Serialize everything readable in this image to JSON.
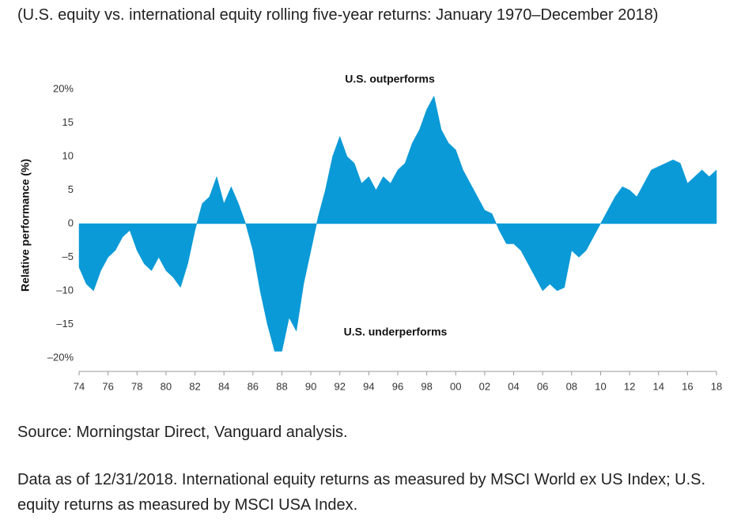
{
  "chart_data": {
    "type": "area",
    "title": "(U.S. equity vs. international equity rolling five-year returns: January 1970–December 2018)",
    "y_label": "Relative performance (%)",
    "annotations": [
      "U.S. outperforms",
      "U.S. underperforms"
    ],
    "source": "Source: Morningstar Direct, Vanguard analysis.",
    "note": "Data as of 12/31/2018. International equity returns as measured by MSCI World ex US Index; U.S. equity returns as measured by MSCI USA Index.",
    "color": "#0a9ad7",
    "x": [
      1974,
      1974.5,
      1975,
      1975.5,
      1976,
      1976.5,
      1977,
      1977.5,
      1978,
      1978.5,
      1979,
      1979.5,
      1980,
      1980.5,
      1981,
      1981.5,
      1982,
      1982.5,
      1983,
      1983.5,
      1984,
      1984.5,
      1985,
      1985.5,
      1986,
      1986.5,
      1987,
      1987.5,
      1988,
      1988.5,
      1989,
      1989.5,
      1990,
      1990.5,
      1991,
      1991.5,
      1992,
      1992.5,
      1993,
      1993.5,
      1994,
      1994.5,
      1995,
      1995.5,
      1996,
      1996.5,
      1997,
      1997.5,
      1998,
      1998.5,
      1999,
      1999.5,
      2000,
      2000.5,
      2001,
      2001.5,
      2002,
      2002.5,
      2003,
      2003.5,
      2004,
      2004.5,
      2005,
      2005.5,
      2006,
      2006.5,
      2007,
      2007.5,
      2008,
      2008.5,
      2009,
      2009.5,
      2010,
      2010.5,
      2011,
      2011.5,
      2012,
      2012.5,
      2013,
      2013.5,
      2014,
      2014.5,
      2015,
      2015.5,
      2016,
      2016.5,
      2017,
      2017.5,
      2018
    ],
    "values": [
      -6.5,
      -9,
      -10,
      -7,
      -5,
      -4,
      -2,
      -1,
      -4,
      -6,
      -7,
      -5,
      -7,
      -8,
      -9.5,
      -6,
      -1,
      3,
      4,
      7,
      3,
      5.5,
      3,
      0,
      -4,
      -10,
      -15,
      -19,
      -19,
      -14,
      -16,
      -9,
      -4,
      1,
      5,
      10,
      13,
      10,
      9,
      6,
      7,
      5,
      7,
      6,
      8,
      9,
      12,
      14,
      17,
      19,
      14,
      12,
      11,
      8,
      6,
      4,
      2,
      1.5,
      -1,
      -3,
      -3,
      -4,
      -6,
      -8,
      -10,
      -9,
      -10,
      -9.5,
      -4,
      -5,
      -4,
      -2,
      0,
      2,
      4,
      5.5,
      5,
      4,
      6,
      8,
      8.5,
      9,
      9.5,
      9,
      6,
      7,
      8,
      7,
      8
    ],
    "xlim": [
      1974,
      2018
    ],
    "xticks": [
      {
        "value": 1974,
        "label": "74"
      },
      {
        "value": 1976,
        "label": "76"
      },
      {
        "value": 1978,
        "label": "78"
      },
      {
        "value": 1980,
        "label": "80"
      },
      {
        "value": 1982,
        "label": "82"
      },
      {
        "value": 1984,
        "label": "84"
      },
      {
        "value": 1986,
        "label": "86"
      },
      {
        "value": 1988,
        "label": "88"
      },
      {
        "value": 1990,
        "label": "90"
      },
      {
        "value": 1992,
        "label": "92"
      },
      {
        "value": 1994,
        "label": "94"
      },
      {
        "value": 1996,
        "label": "96"
      },
      {
        "value": 1998,
        "label": "98"
      },
      {
        "value": 2000,
        "label": "00"
      },
      {
        "value": 2002,
        "label": "02"
      },
      {
        "value": 2004,
        "label": "04"
      },
      {
        "value": 2006,
        "label": "06"
      },
      {
        "value": 2008,
        "label": "08"
      },
      {
        "value": 2010,
        "label": "10"
      },
      {
        "value": 2012,
        "label": "12"
      },
      {
        "value": 2014,
        "label": "14"
      },
      {
        "value": 2016,
        "label": "16"
      },
      {
        "value": 2018,
        "label": "18"
      }
    ],
    "ylim": [
      -20,
      20
    ],
    "yticks": [
      {
        "value": -20,
        "label": "–20%"
      },
      {
        "value": -15,
        "label": "–15"
      },
      {
        "value": -10,
        "label": "–10"
      },
      {
        "value": -5,
        "label": "–5"
      },
      0,
      5,
      10,
      15,
      {
        "value": 20,
        "label": "20%"
      }
    ]
  }
}
